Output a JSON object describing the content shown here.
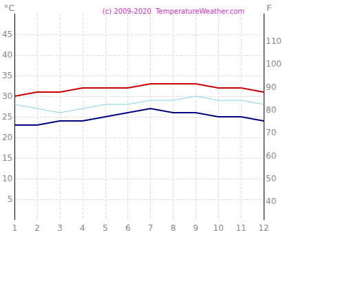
{
  "chart_data": {
    "type": "line",
    "title": "(c) 2009-2020  TemperatureWeather.com",
    "y_label": "°C",
    "y2_label": "F",
    "categories": [
      "1",
      "2",
      "3",
      "4",
      "5",
      "6",
      "7",
      "8",
      "9",
      "10",
      "11",
      "12"
    ],
    "series": [
      {
        "color": "#cc0000",
        "values": [
          30,
          31,
          31,
          32,
          32,
          32,
          33,
          33,
          33,
          32,
          32,
          31
        ]
      },
      {
        "color": "#7fd3e6",
        "values": [
          28,
          27,
          26,
          27,
          28,
          28,
          29,
          29,
          30,
          29,
          29,
          28
        ]
      },
      {
        "color": "#000080",
        "values": [
          23,
          23,
          24,
          24,
          25,
          26,
          27,
          26,
          26,
          25,
          25,
          24
        ]
      }
    ],
    "ylim": [
      0,
      50
    ],
    "yticks": [
      5,
      10,
      15,
      20,
      25,
      30,
      35,
      40,
      45
    ],
    "y2lim": [
      32,
      122
    ],
    "y2ticks": [
      40,
      50,
      60,
      70,
      80,
      90,
      100,
      110
    ],
    "grid": true
  }
}
